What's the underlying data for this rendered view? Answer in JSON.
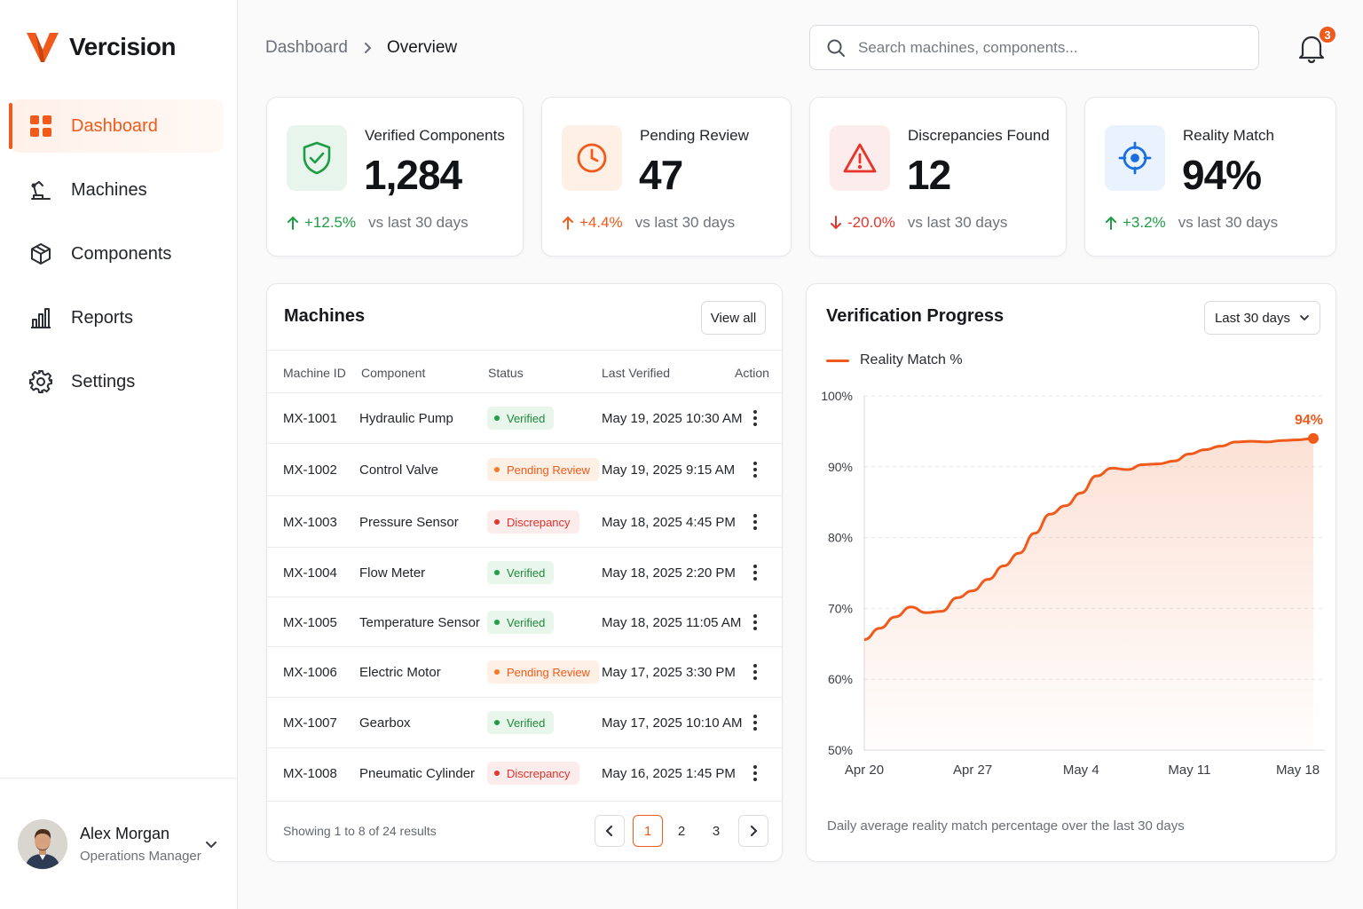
{
  "brand": {
    "name": "Vercision",
    "accent": "#f05a1a"
  },
  "sidebar": {
    "items": [
      {
        "label": "Dashboard",
        "icon": "dashboard-grid-icon",
        "active": true
      },
      {
        "label": "Machines",
        "icon": "robot-arm-icon",
        "active": false
      },
      {
        "label": "Components",
        "icon": "cube-icon",
        "active": false
      },
      {
        "label": "Reports",
        "icon": "bar-chart-icon",
        "active": false
      },
      {
        "label": "Settings",
        "icon": "gear-icon",
        "active": false
      }
    ],
    "user": {
      "name": "Alex Morgan",
      "role": "Operations Manager"
    }
  },
  "header": {
    "breadcrumb": [
      "Dashboard",
      "Overview"
    ],
    "search_placeholder": "Search machines, components...",
    "notification_count": "3"
  },
  "kpis": [
    {
      "label": "Verified Components",
      "value": "1,284",
      "delta": "+12.5%",
      "direction": "up",
      "compare": "vs last 30 days",
      "icon": "shield-check-icon",
      "color": "#1e9d45"
    },
    {
      "label": "Pending Review",
      "value": "47",
      "delta": "+4.4%",
      "direction": "up",
      "compare": "vs last 30 days",
      "icon": "clock-icon",
      "color": "#f05a1a"
    },
    {
      "label": "Discrepancies Found",
      "value": "12",
      "delta": "-20.0%",
      "direction": "down",
      "compare": "vs last 30 days",
      "icon": "warning-triangle-icon",
      "color": "#e5352b"
    },
    {
      "label": "Reality Match",
      "value": "94%",
      "delta": "+3.2%",
      "direction": "up",
      "compare": "vs last 30 days",
      "icon": "target-icon",
      "color": "#1a6fe0"
    }
  ],
  "machines": {
    "title": "Machines",
    "view_all": "View all",
    "columns": [
      "Machine ID",
      "Component",
      "Status",
      "Last Verified",
      "Action"
    ],
    "rows": [
      {
        "id": "MX-1001",
        "component": "Hydraulic Pump",
        "status": "Verified",
        "last_verified": "May 19, 2025 10:30 AM"
      },
      {
        "id": "MX-1002",
        "component": "Control Valve",
        "status": "Pending Review",
        "last_verified": "May 19, 2025 9:15 AM"
      },
      {
        "id": "MX-1003",
        "component": "Pressure Sensor",
        "status": "Discrepancy",
        "last_verified": "May 18, 2025 4:45 PM"
      },
      {
        "id": "MX-1004",
        "component": "Flow Meter",
        "status": "Verified",
        "last_verified": "May 18, 2025 2:20 PM"
      },
      {
        "id": "MX-1005",
        "component": "Temperature Sensor",
        "status": "Verified",
        "last_verified": "May 18, 2025 11:05 AM"
      },
      {
        "id": "MX-1006",
        "component": "Electric Motor",
        "status": "Pending Review",
        "last_verified": "May 17, 2025 3:30 PM"
      },
      {
        "id": "MX-1007",
        "component": "Gearbox",
        "status": "Verified",
        "last_verified": "May 17, 2025 10:10 AM"
      },
      {
        "id": "MX-1008",
        "component": "Pneumatic Cylinder",
        "status": "Discrepancy",
        "last_verified": "May 16, 2025 1:45 PM"
      }
    ],
    "footer": "Showing 1 to 8 of 24 results",
    "pages": [
      "1",
      "2",
      "3"
    ],
    "current_page": "1"
  },
  "progress": {
    "title": "Verification Progress",
    "range_select": "Last 30 days",
    "caption": "Daily average reality match percentage over the last 30 days"
  },
  "chart_data": {
    "type": "area",
    "series": [
      {
        "name": "Reality Match %",
        "color": "#f05a1a",
        "x": [
          "Apr 20",
          "Apr 21",
          "Apr 22",
          "Apr 23",
          "Apr 24",
          "Apr 25",
          "Apr 26",
          "Apr 27",
          "Apr 28",
          "Apr 29",
          "Apr 30",
          "May 1",
          "May 2",
          "May 3",
          "May 4",
          "May 5",
          "May 6",
          "May 7",
          "May 8",
          "May 9",
          "May 10",
          "May 11",
          "May 12",
          "May 13",
          "May 14",
          "May 15",
          "May 16",
          "May 17",
          "May 18",
          "May 19"
        ],
        "values": [
          65.6,
          67.2,
          68.8,
          70.2,
          69.4,
          69.6,
          71.5,
          72.5,
          74.1,
          76.0,
          77.8,
          80.6,
          83.3,
          84.5,
          86.3,
          88.7,
          89.8,
          89.6,
          90.3,
          90.4,
          90.8,
          91.8,
          92.4,
          92.9,
          93.5,
          93.6,
          93.5,
          93.7,
          93.8,
          94.0
        ]
      }
    ],
    "end_label": "94%",
    "x_ticks": [
      "Apr 20",
      "Apr 27",
      "May 4",
      "May 11",
      "May 18"
    ],
    "y_ticks": [
      "100%",
      "90%",
      "80%",
      "70%",
      "60%",
      "50%"
    ],
    "ylim": [
      50,
      100
    ],
    "grid": true,
    "legend": "top-left"
  }
}
